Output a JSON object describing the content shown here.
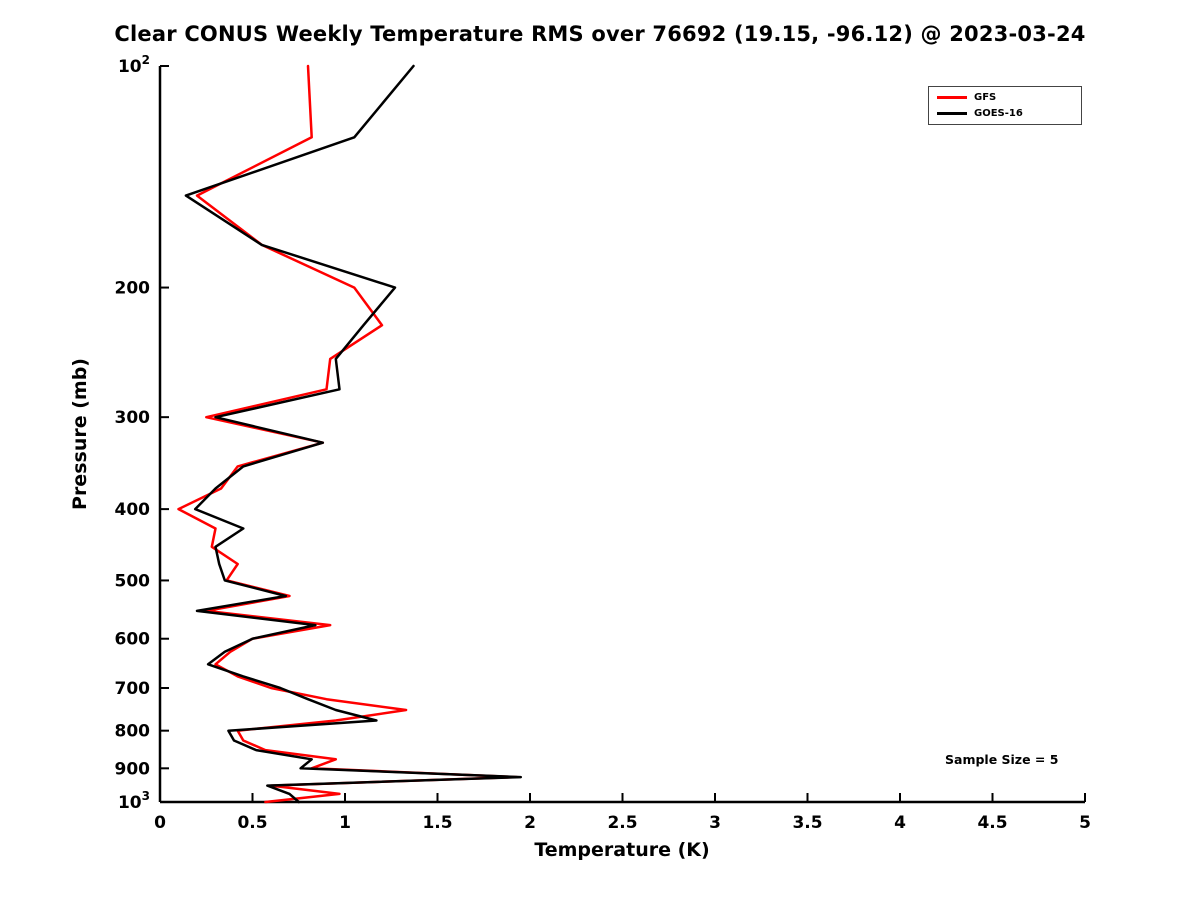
{
  "title": "Clear CONUS Weekly Temperature RMS over 76692 (19.15, -96.12) @ 2023-03-24",
  "annotation": "Sample Size = 5",
  "legend": [
    {
      "label": "GFS",
      "color": "#ff0000"
    },
    {
      "label": "GOES-16",
      "color": "#000000"
    }
  ],
  "chart_data": {
    "type": "line",
    "title": "Clear CONUS Weekly Temperature RMS over 76692 (19.15, -96.12) @ 2023-03-24",
    "x_axis": {
      "label": "Temperature (K)",
      "min": 0,
      "max": 5,
      "ticks": [
        0,
        0.5,
        1,
        1.5,
        2,
        2.5,
        3,
        3.5,
        4,
        4.5,
        5
      ],
      "tick_labels": [
        "0",
        "0.5",
        "1",
        "1.5",
        "2",
        "2.5",
        "3",
        "3.5",
        "4",
        "4.5",
        "5"
      ]
    },
    "y_axis": {
      "label": "Pressure (mb)",
      "scale": "log",
      "min": 100,
      "max": 1000,
      "inverted": true,
      "ticks": [
        {
          "p": 100,
          "base": "10",
          "exp": "2"
        },
        {
          "p": 200,
          "text": "200"
        },
        {
          "p": 300,
          "text": "300"
        },
        {
          "p": 400,
          "text": "400"
        },
        {
          "p": 500,
          "text": "500"
        },
        {
          "p": 600,
          "text": "600"
        },
        {
          "p": 700,
          "text": "700"
        },
        {
          "p": 800,
          "text": "800"
        },
        {
          "p": 900,
          "text": "900"
        },
        {
          "p": 1000,
          "base": "10",
          "exp": "3"
        }
      ]
    },
    "pressure_levels": [
      100,
      125,
      150,
      175,
      200,
      225,
      250,
      275,
      300,
      325,
      350,
      375,
      400,
      425,
      450,
      475,
      500,
      525,
      550,
      575,
      600,
      625,
      650,
      675,
      700,
      725,
      750,
      775,
      800,
      825,
      850,
      875,
      900,
      925,
      950,
      975,
      1000
    ],
    "series": [
      {
        "name": "GFS",
        "color": "#ff0000",
        "values": [
          0.8,
          0.82,
          0.2,
          0.55,
          1.05,
          1.2,
          0.92,
          0.9,
          0.25,
          0.88,
          0.42,
          0.33,
          0.1,
          0.3,
          0.28,
          0.42,
          0.36,
          0.7,
          0.25,
          0.92,
          0.5,
          0.38,
          0.3,
          0.42,
          0.6,
          0.9,
          1.33,
          0.95,
          0.42,
          0.45,
          0.57,
          0.95,
          0.82,
          1.93,
          0.6,
          0.97,
          0.57
        ]
      },
      {
        "name": "GOES-16",
        "color": "#000000",
        "values": [
          1.37,
          1.05,
          0.14,
          0.55,
          1.27,
          1.1,
          0.95,
          0.97,
          0.3,
          0.88,
          0.45,
          0.3,
          0.19,
          0.45,
          0.3,
          0.32,
          0.35,
          0.68,
          0.2,
          0.84,
          0.5,
          0.35,
          0.26,
          0.45,
          0.65,
          0.8,
          0.95,
          1.17,
          0.37,
          0.4,
          0.52,
          0.82,
          0.76,
          1.95,
          0.58,
          0.7,
          0.75
        ]
      }
    ],
    "legend_position": "top-right",
    "grid": false,
    "annotation": "Sample Size = 5"
  }
}
